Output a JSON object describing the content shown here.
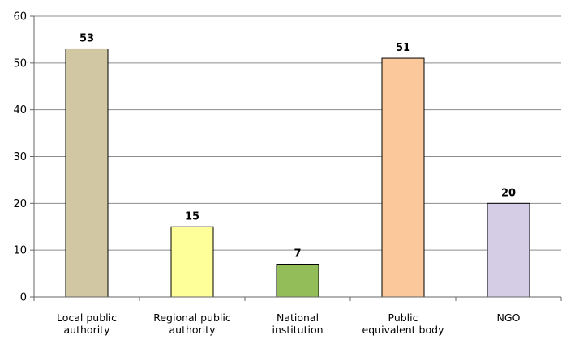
{
  "chart_data": {
    "type": "bar",
    "categories": [
      [
        "Local public",
        "authority"
      ],
      [
        "Regional public",
        "authority"
      ],
      [
        "National",
        "institution"
      ],
      [
        "Public",
        "equivalent body"
      ],
      [
        "NGO"
      ]
    ],
    "values": [
      53,
      15,
      7,
      51,
      20
    ],
    "data_labels": [
      "53",
      "15",
      "7",
      "51",
      "20"
    ],
    "bar_colors": [
      "#d2c7a3",
      "#ffff99",
      "#92bd58",
      "#fbc89b",
      "#d5cde6"
    ],
    "ylim": [
      0,
      60
    ],
    "yticks": [
      0,
      10,
      20,
      30,
      40,
      50,
      60
    ],
    "title": "",
    "xlabel": "",
    "ylabel": "",
    "grid": true,
    "legend": "none"
  }
}
